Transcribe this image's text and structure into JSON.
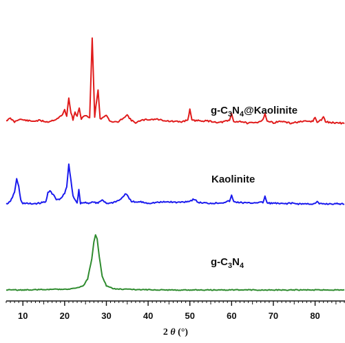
{
  "chart_data": {
    "type": "line",
    "xlabel_prefix": "2",
    "xlabel_symbol": "θ",
    "xlabel_unit": "(°)",
    "xlim": [
      6,
      87
    ],
    "x_ticks": [
      10,
      20,
      30,
      40,
      50,
      60,
      70,
      80
    ],
    "x_tick_labels": [
      "10",
      "20",
      "30",
      "40",
      "50",
      "60",
      "70",
      "80"
    ],
    "y_axis_shown": false,
    "grid": false,
    "series": [
      {
        "name": "g-C3N4@Kaolinite",
        "label_parts": {
          "pre": "g-C",
          "sub1": "3",
          "mid": "N",
          "sub2": "4",
          "post": "@Kaolinite"
        },
        "color": "#e01b1b",
        "points": [
          [
            6,
            170
          ],
          [
            7,
            173
          ],
          [
            8,
            168
          ],
          [
            9,
            172
          ],
          [
            10,
            171
          ],
          [
            12,
            169
          ],
          [
            14,
            170
          ],
          [
            16,
            168
          ],
          [
            18,
            172
          ],
          [
            19.5,
            178
          ],
          [
            20,
            186
          ],
          [
            20.5,
            176
          ],
          [
            21,
            203
          ],
          [
            21.5,
            182
          ],
          [
            22,
            171
          ],
          [
            22.5,
            182
          ],
          [
            23,
            176
          ],
          [
            23.5,
            188
          ],
          [
            24,
            172
          ],
          [
            25,
            178
          ],
          [
            26,
            174
          ],
          [
            26.6,
            290
          ],
          [
            27.2,
            176
          ],
          [
            28,
            215
          ],
          [
            28.5,
            172
          ],
          [
            29,
            174
          ],
          [
            30,
            178
          ],
          [
            31,
            168
          ],
          [
            33,
            168
          ],
          [
            34,
            174
          ],
          [
            35,
            178
          ],
          [
            36,
            170
          ],
          [
            37,
            167
          ],
          [
            39,
            171
          ],
          [
            42,
            172
          ],
          [
            45,
            169
          ],
          [
            48,
            168
          ],
          [
            49.5,
            171
          ],
          [
            50,
            186
          ],
          [
            50.5,
            170
          ],
          [
            52,
            170
          ],
          [
            55,
            169
          ],
          [
            57,
            167
          ],
          [
            59.5,
            170
          ],
          [
            60,
            180
          ],
          [
            60.5,
            168
          ],
          [
            62,
            169
          ],
          [
            64,
            166
          ],
          [
            66,
            167
          ],
          [
            67.5,
            171
          ],
          [
            68,
            181
          ],
          [
            68.5,
            169
          ],
          [
            70,
            167
          ],
          [
            72,
            169
          ],
          [
            74,
            166
          ],
          [
            76,
            168
          ],
          [
            79.5,
            169
          ],
          [
            80,
            175
          ],
          [
            80.5,
            167
          ],
          [
            81.5,
            171
          ],
          [
            82,
            176
          ],
          [
            82.5,
            168
          ],
          [
            84,
            167
          ],
          [
            87,
            166
          ]
        ]
      },
      {
        "name": "Kaolinite",
        "label_parts": {
          "pre": "Kaolinite",
          "sub1": "",
          "mid": "",
          "sub2": "",
          "post": ""
        },
        "color": "#1a1aee",
        "points": [
          [
            6,
            76
          ],
          [
            7,
            79
          ],
          [
            8,
            93
          ],
          [
            8.5,
            112
          ],
          [
            9,
            101
          ],
          [
            9.5,
            81
          ],
          [
            10,
            77
          ],
          [
            12,
            76
          ],
          [
            14,
            77
          ],
          [
            15.5,
            79
          ],
          [
            16,
            93
          ],
          [
            16.5,
            95
          ],
          [
            17,
            90
          ],
          [
            17.5,
            88
          ],
          [
            18,
            82
          ],
          [
            19,
            83
          ],
          [
            20,
            91
          ],
          [
            20.5,
            101
          ],
          [
            21,
            133
          ],
          [
            21.5,
            110
          ],
          [
            22,
            88
          ],
          [
            22.5,
            82
          ],
          [
            23,
            78
          ],
          [
            23.4,
            96
          ],
          [
            23.8,
            77
          ],
          [
            25,
            78
          ],
          [
            26,
            77
          ],
          [
            27,
            79
          ],
          [
            27.5,
            77
          ],
          [
            28,
            77
          ],
          [
            29,
            82
          ],
          [
            30,
            77
          ],
          [
            31,
            77
          ],
          [
            33,
            81
          ],
          [
            34,
            86
          ],
          [
            34.5,
            91
          ],
          [
            35,
            88
          ],
          [
            35.5,
            83
          ],
          [
            36,
            80
          ],
          [
            37,
            78
          ],
          [
            38,
            79
          ],
          [
            40,
            77
          ],
          [
            42,
            78
          ],
          [
            45,
            79
          ],
          [
            47,
            78
          ],
          [
            50,
            80
          ],
          [
            51,
            83
          ],
          [
            52,
            78
          ],
          [
            54,
            77
          ],
          [
            56,
            77
          ],
          [
            58,
            78
          ],
          [
            59.5,
            80
          ],
          [
            60,
            88
          ],
          [
            60.5,
            79
          ],
          [
            62,
            78
          ],
          [
            64,
            77
          ],
          [
            66,
            78
          ],
          [
            67.5,
            78
          ],
          [
            68,
            87
          ],
          [
            68.5,
            77
          ],
          [
            70,
            77
          ],
          [
            72,
            76
          ],
          [
            74,
            77
          ],
          [
            76,
            76
          ],
          [
            80,
            76
          ],
          [
            80.5,
            79
          ],
          [
            81,
            76
          ],
          [
            84,
            76
          ],
          [
            87,
            76
          ]
        ]
      },
      {
        "name": "g-C3N4",
        "label_parts": {
          "pre": "g-C",
          "sub1": "3",
          "mid": "N",
          "sub2": "4",
          "post": ""
        },
        "color": "#2e8b2e",
        "points": [
          [
            6,
            0
          ],
          [
            10,
            0
          ],
          [
            14,
            0.5
          ],
          [
            18,
            1
          ],
          [
            21,
            1.5
          ],
          [
            23,
            3
          ],
          [
            24.5,
            6
          ],
          [
            25.5,
            16
          ],
          [
            26.5,
            45
          ],
          [
            27,
            70
          ],
          [
            27.4,
            80
          ],
          [
            27.8,
            74
          ],
          [
            28.3,
            48
          ],
          [
            29,
            20
          ],
          [
            30,
            6
          ],
          [
            31.5,
            2
          ],
          [
            34,
            1
          ],
          [
            38,
            0.5
          ],
          [
            45,
            0
          ],
          [
            55,
            0
          ],
          [
            65,
            0
          ],
          [
            75,
            0
          ],
          [
            87,
            0
          ]
        ]
      }
    ]
  }
}
